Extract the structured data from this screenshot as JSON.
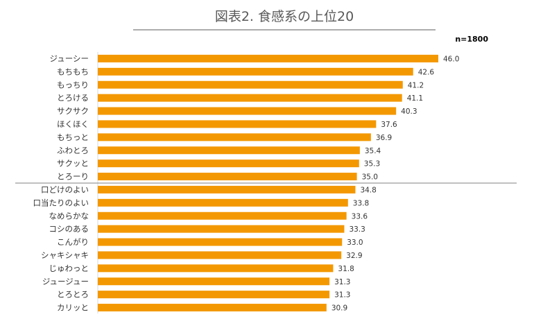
{
  "chart_data": {
    "type": "bar",
    "orientation": "horizontal",
    "title": "図表2. 食感系の上位20",
    "note": "n=1800",
    "categories": [
      "ジューシー",
      "もちもち",
      "もっちり",
      "とろける",
      "サクサク",
      "ほくほく",
      "もちっと",
      "ふわとろ",
      "サクッと",
      "とろーり",
      "口どけのよい",
      "口当たりのよい",
      "なめらかな",
      "コシのある",
      "こんがり",
      "シャキシャキ",
      "じゅわっと",
      "ジュージュー",
      "とろとろ",
      "カリッと"
    ],
    "values": [
      46.0,
      42.6,
      41.2,
      41.1,
      40.3,
      37.6,
      36.9,
      35.4,
      35.3,
      35.0,
      34.8,
      33.8,
      33.6,
      33.3,
      33.0,
      32.9,
      31.8,
      31.3,
      31.3,
      30.9
    ],
    "value_labels": [
      "46.0",
      "42.6",
      "41.2",
      "41.1",
      "40.3",
      "37.6",
      "36.9",
      "35.4",
      "35.3",
      "35.0",
      "34.8",
      "33.8",
      "33.6",
      "33.3",
      "33.0",
      "32.9",
      "31.8",
      "31.3",
      "31.3",
      "30.9"
    ],
    "xlim": [
      0,
      50
    ],
    "bar_color": "#f39800",
    "divider_after_rank": 10,
    "grid": false,
    "legend": "none"
  }
}
